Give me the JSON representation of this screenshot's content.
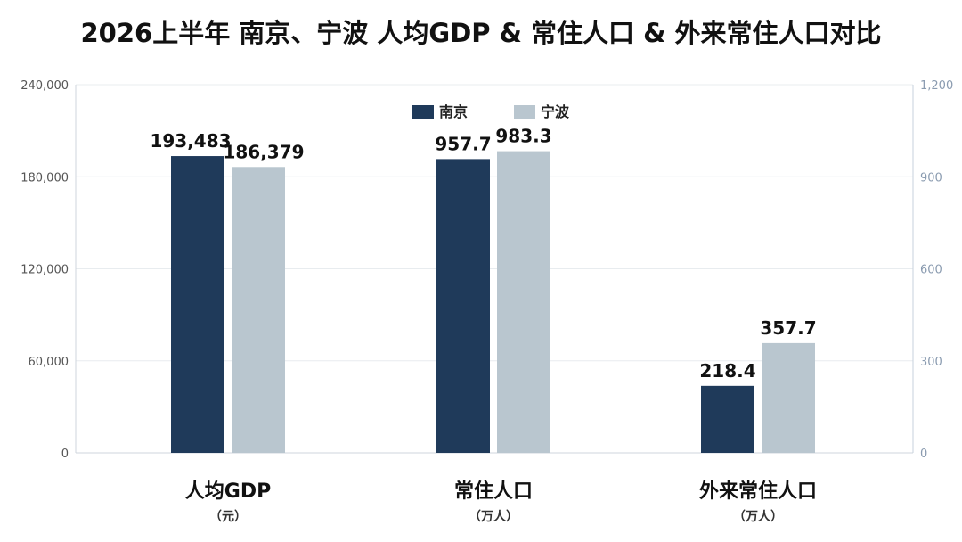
{
  "title": "2026上半年 南京、宁波 人均GDP & 常住人口 & 外来常住人口对比",
  "colors": {
    "nanjing": "#1f3a5a",
    "ningbo": "#b9c6cf",
    "grid": "#e8ecef",
    "axis_right": "#8a9bb0"
  },
  "chart_data": {
    "type": "bar",
    "title": "2026上半年 南京、宁波 人均GDP & 常住人口 & 外来常住人口对比",
    "categories": [
      {
        "label": "人均GDP",
        "unit": "（元）",
        "axis": "left"
      },
      {
        "label": "常住人口",
        "unit": "（万人）",
        "axis": "right"
      },
      {
        "label": "外来常住人口",
        "unit": "（万人）",
        "axis": "right"
      }
    ],
    "series": [
      {
        "name": "南京",
        "values": [
          193483,
          957.7,
          218.4
        ],
        "labels": [
          "193,483",
          "957.7",
          "218.4"
        ]
      },
      {
        "name": "宁波",
        "values": [
          186379,
          983.3,
          357.7
        ],
        "labels": [
          "186,379",
          "983.3",
          "357.7"
        ]
      }
    ],
    "y_left": {
      "min": 0,
      "max": 240000,
      "ticks": [
        "0",
        "60,000",
        "120,000",
        "180,000",
        "240,000"
      ]
    },
    "y_right": {
      "min": 0,
      "max": 1200,
      "ticks": [
        "0",
        "300",
        "600",
        "900",
        "1,200"
      ]
    },
    "grid": true,
    "legend_position": "top-center"
  }
}
